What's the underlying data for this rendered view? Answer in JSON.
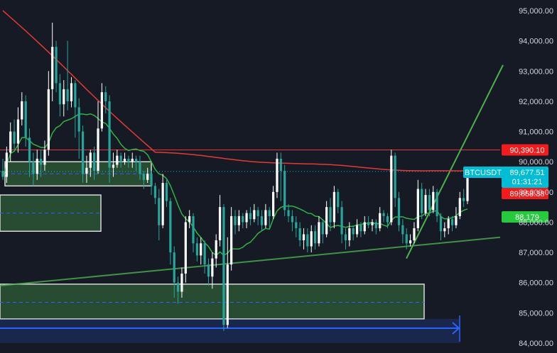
{
  "chart_data": {
    "type": "candlestick",
    "symbol": "BTCUSDT",
    "ylim": [
      84000,
      95500
    ],
    "y_ticks": [
      "95,000.00",
      "94,000.00",
      "93,000.00",
      "92,000.00",
      "91,000.00",
      "90,000.00",
      "89,000.00",
      "88,000.00",
      "87,000.00",
      "86,000.00",
      "85,000.00",
      "84,000.00"
    ],
    "y_tick_values": [
      95000,
      94000,
      93000,
      92000,
      91000,
      90000,
      89000,
      88000,
      87000,
      86000,
      85000,
      84000
    ],
    "grid": false,
    "colors": {
      "background": "#161a25",
      "up": "#ffffff",
      "down": "#26a69a",
      "ma_slow": "#e53935",
      "ma_fast": "#2fb344",
      "trendline": "#4caf50",
      "resistance": "#e53935",
      "zone_fill": "#2e5e35",
      "zone_border": "#d9d9d9",
      "range_tool": "#2962ff",
      "price_tag": "#00bcd4",
      "red_tag": "#f21c1c",
      "green_tag": "#27c93f"
    },
    "candles": [
      [
        89700,
        89500,
        90100,
        89400
      ],
      [
        89500,
        90300,
        90500,
        89300
      ],
      [
        90300,
        91000,
        91300,
        90000
      ],
      [
        91000,
        90600,
        91400,
        90400
      ],
      [
        90600,
        91400,
        91800,
        90300
      ],
      [
        91400,
        92000,
        92300,
        91200
      ],
      [
        92000,
        90800,
        92200,
        90500
      ],
      [
        90800,
        90000,
        91100,
        89500
      ],
      [
        90000,
        89600,
        90300,
        89200
      ],
      [
        89600,
        90100,
        90400,
        89400
      ],
      [
        90100,
        89900,
        90400,
        89500
      ],
      [
        89900,
        90400,
        90700,
        89700
      ],
      [
        90400,
        92400,
        93000,
        90200
      ],
      [
        92400,
        93800,
        94600,
        92000
      ],
      [
        93800,
        92600,
        94000,
        92300
      ],
      [
        92600,
        91900,
        92900,
        91500
      ],
      [
        91900,
        92400,
        92700,
        91500
      ],
      [
        92400,
        92000,
        94000,
        91700
      ],
      [
        92000,
        92600,
        92800,
        91800
      ],
      [
        92600,
        91800,
        92700,
        90800
      ],
      [
        91800,
        91000,
        92100,
        90100
      ],
      [
        91000,
        89600,
        91200,
        89300
      ],
      [
        89600,
        89800,
        90200,
        89300
      ],
      [
        89800,
        90300,
        90400,
        89500
      ],
      [
        90300,
        89700,
        90500,
        89400
      ],
      [
        89700,
        91100,
        92000,
        89600
      ],
      [
        91100,
        92300,
        92600,
        91000
      ],
      [
        92300,
        92000,
        92500,
        91600
      ],
      [
        92000,
        89800,
        92200,
        89300
      ],
      [
        89800,
        89900,
        90300,
        89500
      ],
      [
        89900,
        90200,
        90400,
        89800
      ],
      [
        90200,
        90000,
        90300,
        89800
      ],
      [
        90000,
        90100,
        90300,
        89900
      ],
      [
        90100,
        90000,
        90200,
        89800
      ],
      [
        90000,
        90100,
        90300,
        89800
      ],
      [
        90100,
        90000,
        90200,
        89700
      ],
      [
        90000,
        89600,
        90200,
        89400
      ],
      [
        89600,
        89400,
        89700,
        89100
      ],
      [
        89400,
        89600,
        89800,
        89300
      ],
      [
        89600,
        89200,
        89700,
        88900
      ],
      [
        89200,
        88800,
        89300,
        88600
      ],
      [
        88800,
        87900,
        89100,
        87400
      ],
      [
        87900,
        89300,
        89600,
        87800
      ],
      [
        89300,
        88700,
        89400,
        88500
      ],
      [
        88700,
        87000,
        88800,
        86600
      ],
      [
        87000,
        86000,
        87200,
        85500
      ],
      [
        86000,
        85700,
        86200,
        85300
      ],
      [
        85700,
        86300,
        86500,
        85500
      ],
      [
        86300,
        88000,
        88200,
        86000
      ],
      [
        88000,
        88200,
        88400,
        87800
      ],
      [
        88200,
        87300,
        88300,
        87000
      ],
      [
        87300,
        86900,
        87500,
        86700
      ],
      [
        86900,
        87300,
        87500,
        86600
      ],
      [
        87300,
        86600,
        87400,
        86300
      ],
      [
        86600,
        86200,
        86800,
        85900
      ],
      [
        86200,
        86800,
        87000,
        85800
      ],
      [
        86800,
        87400,
        87600,
        86500
      ],
      [
        87400,
        88500,
        88900,
        87200
      ],
      [
        88500,
        84600,
        88600,
        84400
      ],
      [
        84600,
        86600,
        87500,
        84500
      ],
      [
        86600,
        88200,
        88500,
        86400
      ],
      [
        88200,
        87900,
        88400,
        87600
      ],
      [
        87900,
        88200,
        88400,
        87700
      ],
      [
        88200,
        88000,
        88300,
        87800
      ],
      [
        88000,
        88300,
        88400,
        87800
      ],
      [
        88300,
        88100,
        88500,
        87900
      ],
      [
        88100,
        88400,
        88600,
        88000
      ],
      [
        88400,
        88200,
        88500,
        87900
      ],
      [
        88200,
        87900,
        88400,
        87700
      ],
      [
        87900,
        88400,
        88600,
        87800
      ],
      [
        88400,
        88200,
        88500,
        87800
      ],
      [
        88200,
        89000,
        89200,
        88100
      ],
      [
        89000,
        90100,
        90300,
        88800
      ],
      [
        90100,
        89700,
        90300,
        88700
      ],
      [
        89700,
        88400,
        89900,
        88200
      ],
      [
        88400,
        88200,
        88600,
        88000
      ],
      [
        88200,
        88000,
        88400,
        87700
      ],
      [
        88000,
        87800,
        88200,
        87500
      ],
      [
        87800,
        87400,
        88000,
        87200
      ],
      [
        87400,
        87600,
        87800,
        87100
      ],
      [
        87600,
        87200,
        87800,
        87000
      ],
      [
        87200,
        87700,
        87900,
        87000
      ],
      [
        87700,
        87300,
        87900,
        87100
      ],
      [
        87300,
        88000,
        88200,
        87200
      ],
      [
        88000,
        87600,
        88100,
        87300
      ],
      [
        87600,
        88500,
        88700,
        87500
      ],
      [
        88500,
        88000,
        88800,
        87700
      ],
      [
        88000,
        89000,
        89200,
        87800
      ],
      [
        89000,
        88500,
        89100,
        88300
      ],
      [
        88500,
        87600,
        88700,
        87300
      ],
      [
        87600,
        87400,
        87800,
        87100
      ],
      [
        87400,
        87800,
        88000,
        87200
      ],
      [
        87800,
        87600,
        87900,
        87400
      ],
      [
        87600,
        87900,
        88100,
        87500
      ],
      [
        87900,
        87700,
        88000,
        87500
      ],
      [
        87700,
        88000,
        88200,
        87600
      ],
      [
        88000,
        87900,
        88200,
        87800
      ],
      [
        87900,
        88000,
        88100,
        87700
      ],
      [
        88000,
        87800,
        88100,
        87600
      ],
      [
        87800,
        88300,
        88500,
        87700
      ],
      [
        88300,
        88200,
        88400,
        88000
      ],
      [
        88200,
        88000,
        88300,
        87800
      ],
      [
        88000,
        90200,
        90400,
        87900
      ],
      [
        90200,
        88800,
        90300,
        88500
      ],
      [
        88800,
        87900,
        89000,
        87700
      ],
      [
        87900,
        87600,
        88100,
        87300
      ],
      [
        87600,
        87300,
        87800,
        87100
      ],
      [
        87300,
        87400,
        87600,
        87200
      ],
      [
        87400,
        87800,
        88000,
        87300
      ],
      [
        87800,
        89100,
        89400,
        87700
      ],
      [
        89100,
        88300,
        89300,
        88100
      ],
      [
        88300,
        88900,
        89100,
        88200
      ],
      [
        88900,
        88400,
        89100,
        88200
      ],
      [
        88400,
        89000,
        89200,
        88300
      ],
      [
        89000,
        88200,
        89100,
        88000
      ],
      [
        88200,
        87700,
        88300,
        87400
      ],
      [
        87700,
        87800,
        88000,
        87500
      ],
      [
        87800,
        88100,
        88200,
        87600
      ],
      [
        88100,
        87900,
        88200,
        87700
      ],
      [
        87900,
        88200,
        88500,
        87800
      ],
      [
        88200,
        88800,
        89000,
        88100
      ],
      [
        88800,
        88700,
        89100,
        88500
      ],
      [
        88700,
        89678,
        89700,
        88600
      ]
    ],
    "ma_slow_endpoints": [
      [
        0,
        95000
      ],
      [
        40,
        90300
      ],
      [
        80,
        89900
      ],
      [
        120,
        89660
      ]
    ],
    "ma_fast_endpoints": [
      [
        0,
        89900
      ],
      [
        30,
        90050
      ],
      [
        60,
        88200
      ],
      [
        90,
        88000
      ],
      [
        120,
        88180
      ]
    ],
    "resistance_level": 90390.1,
    "current_price": 89677.51,
    "trendline_lower": [
      [
        0,
        85900
      ],
      [
        1,
        87500
      ]
    ],
    "trendline_rising": [
      [
        0,
        86800
      ],
      [
        1,
        93200
      ]
    ],
    "zones": [
      {
        "top": 90000,
        "bottom": 89200,
        "mid": 89600
      },
      {
        "top": 88900,
        "bottom": 87700,
        "mid": 88300
      },
      {
        "top": 85950,
        "bottom": 84800,
        "mid": 85350
      }
    ],
    "range_tool": {
      "top": 84800,
      "bottom": 84000
    },
    "price_tags": {
      "resistance_label": "90,390.10",
      "symbol_label": "BTCUSDT",
      "last_price_label": "89,677.51",
      "countdown_label": "01:31:21",
      "ma_slow_label": "89,658.38",
      "ma_fast_label": "88,179"
    }
  }
}
